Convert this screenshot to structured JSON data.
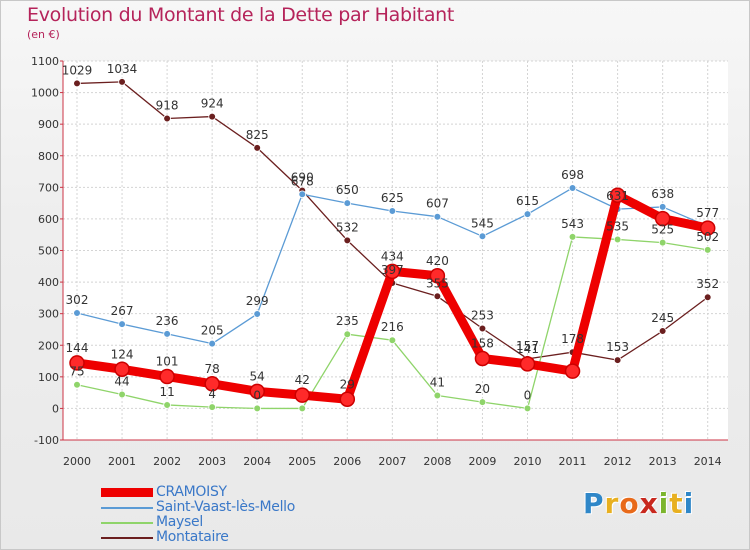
{
  "chart_data": {
    "type": "line",
    "title": "Evolution du Montant de la Dette par Habitant",
    "subtitle": "(en €)",
    "xlabel": "",
    "ylabel": "",
    "ylim": [
      -100,
      1100
    ],
    "yticks": [
      "1100",
      "1000",
      "900",
      "800",
      "700",
      "600",
      "500",
      "400",
      "300",
      "200",
      "100",
      "0",
      "-100"
    ],
    "categories": [
      "2000",
      "2001",
      "2002",
      "2003",
      "2004",
      "2005",
      "2006",
      "2007",
      "2008",
      "2009",
      "2010",
      "2011",
      "2012",
      "2013",
      "2014"
    ],
    "grid": true,
    "legend_position": "bottom-left",
    "series": [
      {
        "name": "CRAMOISY",
        "color": "#ee0000",
        "values": [
          144,
          124,
          101,
          78,
          54,
          42,
          29,
          434,
          420,
          158,
          141,
          118,
          675,
          601,
          571
        ],
        "labels": [
          "144",
          "124",
          "101",
          "78",
          "54",
          "42",
          "29",
          "434",
          "420",
          "158",
          "141",
          "",
          "",
          "",
          ""
        ]
      },
      {
        "name": "Saint-Vaast-lès-Mello",
        "color": "#5b9bd5",
        "values": [
          302,
          267,
          236,
          205,
          299,
          678,
          650,
          625,
          607,
          545,
          615,
          698,
          631,
          638,
          577
        ],
        "labels": [
          "302",
          "267",
          "236",
          "205",
          "299",
          "678",
          "650",
          "625",
          "607",
          "545",
          "615",
          "698",
          "631",
          "638",
          "577"
        ]
      },
      {
        "name": "Maysel",
        "color": "#8fd46a",
        "values": [
          75,
          44,
          11,
          4,
          0,
          0,
          235,
          216,
          41,
          20,
          0,
          543,
          535,
          525,
          502
        ],
        "labels": [
          "75",
          "44",
          "11",
          "4",
          "0",
          "",
          "235",
          "216",
          "41",
          "20",
          "0",
          "543",
          "535",
          "525",
          "502"
        ]
      },
      {
        "name": "Montataire",
        "color": "#6b1f1f",
        "values": [
          1029,
          1034,
          918,
          924,
          825,
          690,
          532,
          397,
          355,
          253,
          157,
          178,
          153,
          245,
          352
        ],
        "labels": [
          "1029",
          "1034",
          "918",
          "924",
          "825",
          "690",
          "532",
          "397",
          "355",
          "253",
          "157",
          "178",
          "153",
          "245",
          "352"
        ]
      }
    ]
  },
  "branding": {
    "letters": [
      "P",
      "r",
      "o",
      "x",
      "i",
      "t",
      "i"
    ]
  }
}
